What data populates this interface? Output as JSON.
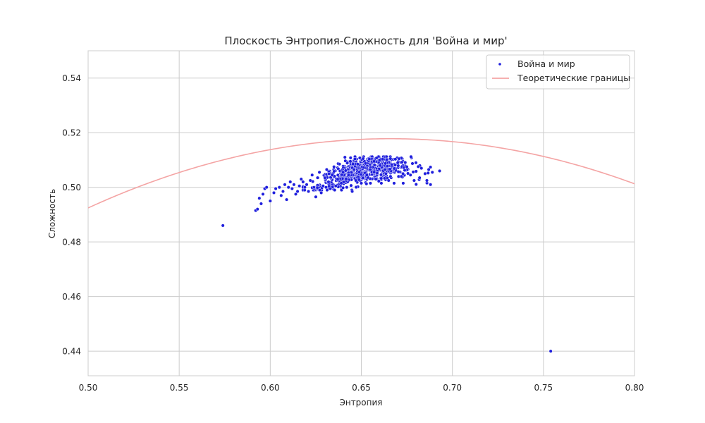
{
  "chart_data": {
    "type": "scatter",
    "title": "Плоскость Энтропия-Сложность для 'Война и мир'",
    "xlabel": "Энтропия",
    "ylabel": "Сложность",
    "xlim": [
      0.5,
      0.8
    ],
    "ylim": [
      0.431,
      0.55
    ],
    "grid": true,
    "legend_position": "top-right",
    "x_ticks": [
      {
        "value": 0.5,
        "label": "0.50"
      },
      {
        "value": 0.55,
        "label": "0.55"
      },
      {
        "value": 0.6,
        "label": "0.60"
      },
      {
        "value": 0.65,
        "label": "0.65"
      },
      {
        "value": 0.7,
        "label": "0.70"
      },
      {
        "value": 0.75,
        "label": "0.75"
      },
      {
        "value": 0.8,
        "label": "0.80"
      }
    ],
    "y_ticks": [
      {
        "value": 0.44,
        "label": "0.44"
      },
      {
        "value": 0.46,
        "label": "0.46"
      },
      {
        "value": 0.48,
        "label": "0.48"
      },
      {
        "value": 0.5,
        "label": "0.50"
      },
      {
        "value": 0.52,
        "label": "0.52"
      },
      {
        "value": 0.54,
        "label": "0.54"
      }
    ],
    "series": [
      {
        "name": "Война и мир",
        "kind": "scatter",
        "color": "#1f1fdd",
        "points": [
          [
            0.574,
            0.486
          ],
          [
            0.754,
            0.44
          ],
          [
            0.592,
            0.4915
          ],
          [
            0.593,
            0.492
          ],
          [
            0.594,
            0.496
          ],
          [
            0.595,
            0.494
          ],
          [
            0.597,
            0.4995
          ],
          [
            0.598,
            0.5
          ],
          [
            0.596,
            0.4975
          ],
          [
            0.6,
            0.495
          ],
          [
            0.602,
            0.498
          ],
          [
            0.603,
            0.4995
          ],
          [
            0.605,
            0.5
          ],
          [
            0.606,
            0.497
          ],
          [
            0.607,
            0.4985
          ],
          [
            0.608,
            0.501
          ],
          [
            0.609,
            0.4955
          ],
          [
            0.61,
            0.5
          ],
          [
            0.611,
            0.502
          ],
          [
            0.612,
            0.4995
          ],
          [
            0.613,
            0.501
          ],
          [
            0.614,
            0.4975
          ],
          [
            0.615,
            0.4985
          ],
          [
            0.616,
            0.5005
          ],
          [
            0.617,
            0.503
          ],
          [
            0.618,
            0.502
          ],
          [
            0.619,
            0.5
          ],
          [
            0.62,
            0.501
          ],
          [
            0.621,
            0.4985
          ],
          [
            0.622,
            0.5025
          ],
          [
            0.623,
            0.5045
          ],
          [
            0.624,
            0.5
          ],
          [
            0.625,
            0.4965
          ],
          [
            0.626,
            0.5035
          ],
          [
            0.627,
            0.5055
          ],
          [
            0.628,
            0.498
          ],
          [
            0.629,
            0.5005
          ],
          [
            0.63,
            0.5035
          ],
          [
            0.631,
            0.5065
          ],
          [
            0.632,
            0.502
          ],
          [
            0.633,
            0.4995
          ],
          [
            0.634,
            0.5045
          ],
          [
            0.635,
            0.5075
          ],
          [
            0.636,
            0.5005
          ],
          [
            0.637,
            0.503
          ],
          [
            0.638,
            0.5085
          ],
          [
            0.639,
            0.5015
          ],
          [
            0.64,
            0.5055
          ],
          [
            0.641,
            0.511
          ],
          [
            0.642,
            0.5
          ],
          [
            0.643,
            0.5045
          ],
          [
            0.644,
            0.5095
          ],
          [
            0.645,
            0.4985
          ],
          [
            0.646,
            0.5065
          ],
          [
            0.647,
            0.5025
          ],
          [
            0.648,
            0.5085
          ],
          [
            0.65,
            0.5015
          ],
          [
            0.651,
            0.5105
          ],
          [
            0.653,
            0.5045
          ],
          [
            0.655,
            0.5015
          ],
          [
            0.657,
            0.5095
          ],
          [
            0.658,
            0.503
          ],
          [
            0.66,
            0.51
          ],
          [
            0.661,
            0.5015
          ],
          [
            0.663,
            0.5065
          ],
          [
            0.665,
            0.5025
          ],
          [
            0.666,
            0.5105
          ],
          [
            0.668,
            0.5015
          ],
          [
            0.67,
            0.509
          ],
          [
            0.672,
            0.504
          ],
          [
            0.673,
            0.5015
          ],
          [
            0.675,
            0.5075
          ],
          [
            0.677,
            0.5045
          ],
          [
            0.679,
            0.5025
          ],
          [
            0.68,
            0.509
          ],
          [
            0.682,
            0.5035
          ],
          [
            0.683,
            0.507
          ],
          [
            0.685,
            0.505
          ],
          [
            0.686,
            0.5025
          ],
          [
            0.687,
            0.5065
          ],
          [
            0.688,
            0.501
          ],
          [
            0.689,
            0.5055
          ],
          [
            0.693,
            0.506
          ]
        ],
        "dense_cluster": {
          "count": 640,
          "center": [
            0.652,
            0.5065
          ],
          "spread": [
            0.0125,
            0.0022
          ]
        }
      },
      {
        "name": "Теоретические границы",
        "kind": "line",
        "color": "#f4a4a4",
        "function": "quadratic",
        "vertex": [
          0.666,
          0.5178
        ],
        "coef": -0.92,
        "x_range": [
          0.5,
          0.8
        ]
      }
    ]
  }
}
